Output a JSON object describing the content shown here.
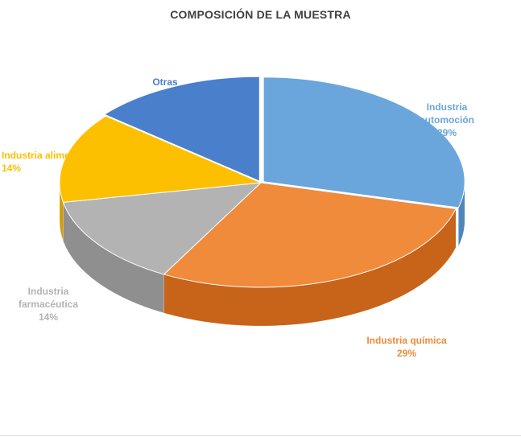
{
  "chart_data": {
    "type": "pie",
    "title": "COMPOSICIÓN DE LA MUESTRA",
    "slices": [
      {
        "id": "automocion",
        "label_lines": [
          "Industria",
          "automoción"
        ],
        "value_label": "29%",
        "value": 29,
        "color": "#6aa6db",
        "side_color": "#4f86b8"
      },
      {
        "id": "quimica",
        "label_lines": [
          "Industria química"
        ],
        "value_label": "29%",
        "value": 29,
        "color": "#ef8b3b",
        "side_color": "#c8631a"
      },
      {
        "id": "farmaceutica",
        "label_lines": [
          "Industria",
          "farmacéutica"
        ],
        "value_label": "14%",
        "value": 14,
        "color": "#b3b3b3",
        "side_color": "#8f8f8f"
      },
      {
        "id": "alimentacion",
        "label_lines": [
          "Industria alimentación"
        ],
        "value_label": "14%",
        "value": 14,
        "color": "#fcc000",
        "side_color": "#d39e00"
      },
      {
        "id": "otras",
        "label_lines": [
          "Otras"
        ],
        "value_label": "14%",
        "value": 14,
        "color": "#4a7fcb",
        "side_color": "#355f9e"
      }
    ],
    "legend": "none",
    "style": "3d-exploded"
  }
}
